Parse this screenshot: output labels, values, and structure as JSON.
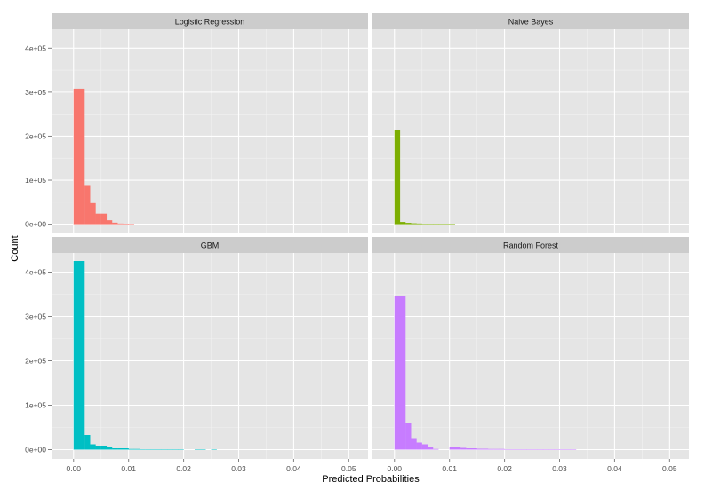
{
  "chart_data": {
    "type": "bar",
    "subtype": "faceted-histogram",
    "xlabel": "Predicted Probabilities",
    "ylabel": "Count",
    "xlim": [
      -0.004,
      0.0535
    ],
    "ylim": [
      -21000,
      443000
    ],
    "x_ticks": [
      0.0,
      0.01,
      0.02,
      0.03,
      0.04,
      0.05
    ],
    "x_tick_labels": [
      "0.00",
      "0.01",
      "0.02",
      "0.03",
      "0.04",
      "0.05"
    ],
    "y_ticks": [
      0,
      100000,
      200000,
      300000,
      400000
    ],
    "y_tick_labels": [
      "0e+00",
      "1e+05",
      "2e+05",
      "3e+05",
      "4e+05"
    ],
    "bin_width": 0.001,
    "grid": true,
    "layout": "2x2 facets, shared axes",
    "panel_background": "#e5e5e5",
    "strip_background": "#cccccc",
    "panels": [
      {
        "title": "Logistic Regression",
        "color": "#f8766d",
        "bins": [
          [
            0.0,
            308000
          ],
          [
            0.001,
            308000
          ],
          [
            0.002,
            89000
          ],
          [
            0.003,
            48000
          ],
          [
            0.004,
            24000
          ],
          [
            0.005,
            24000
          ],
          [
            0.006,
            9000
          ],
          [
            0.007,
            3500
          ],
          [
            0.008,
            1500
          ],
          [
            0.009,
            1200
          ],
          [
            0.01,
            300
          ]
        ]
      },
      {
        "title": "Naive Bayes",
        "color": "#7cae00",
        "bins": [
          [
            0.0,
            213000
          ],
          [
            0.001,
            5000
          ],
          [
            0.002,
            3000
          ],
          [
            0.003,
            2000
          ],
          [
            0.004,
            1500
          ],
          [
            0.005,
            1000
          ],
          [
            0.006,
            800
          ],
          [
            0.007,
            600
          ],
          [
            0.008,
            500
          ],
          [
            0.009,
            400
          ],
          [
            0.01,
            300
          ]
        ]
      },
      {
        "title": "GBM",
        "color": "#00bfc4",
        "bins": [
          [
            0.0,
            425000
          ],
          [
            0.001,
            425000
          ],
          [
            0.002,
            33000
          ],
          [
            0.003,
            12000
          ],
          [
            0.004,
            9000
          ],
          [
            0.005,
            9000
          ],
          [
            0.006,
            5000
          ],
          [
            0.007,
            3000
          ],
          [
            0.008,
            3000
          ],
          [
            0.009,
            3000
          ],
          [
            0.01,
            1500
          ],
          [
            0.011,
            1500
          ],
          [
            0.012,
            1000
          ],
          [
            0.013,
            1000
          ],
          [
            0.014,
            800
          ],
          [
            0.015,
            800
          ],
          [
            0.016,
            700
          ],
          [
            0.017,
            700
          ],
          [
            0.018,
            600
          ],
          [
            0.019,
            600
          ],
          [
            0.022,
            800
          ],
          [
            0.023,
            800
          ],
          [
            0.025,
            300
          ]
        ]
      },
      {
        "title": "Random Forest",
        "color": "#c77cff",
        "bins": [
          [
            0.0,
            345000
          ],
          [
            0.001,
            345000
          ],
          [
            0.002,
            60000
          ],
          [
            0.003,
            26000
          ],
          [
            0.004,
            16000
          ],
          [
            0.005,
            12000
          ],
          [
            0.006,
            7000
          ],
          [
            0.007,
            1500
          ],
          [
            0.01,
            5000
          ],
          [
            0.011,
            5000
          ],
          [
            0.012,
            4000
          ],
          [
            0.013,
            3000
          ],
          [
            0.014,
            3000
          ],
          [
            0.015,
            2000
          ],
          [
            0.016,
            2000
          ],
          [
            0.017,
            1500
          ],
          [
            0.018,
            1500
          ],
          [
            0.019,
            1500
          ],
          [
            0.02,
            800
          ],
          [
            0.021,
            800
          ],
          [
            0.022,
            700
          ],
          [
            0.023,
            700
          ],
          [
            0.024,
            600
          ],
          [
            0.025,
            600
          ],
          [
            0.026,
            500
          ],
          [
            0.027,
            500
          ],
          [
            0.028,
            400
          ],
          [
            0.029,
            400
          ],
          [
            0.03,
            700
          ],
          [
            0.031,
            700
          ],
          [
            0.032,
            700
          ]
        ]
      }
    ]
  }
}
